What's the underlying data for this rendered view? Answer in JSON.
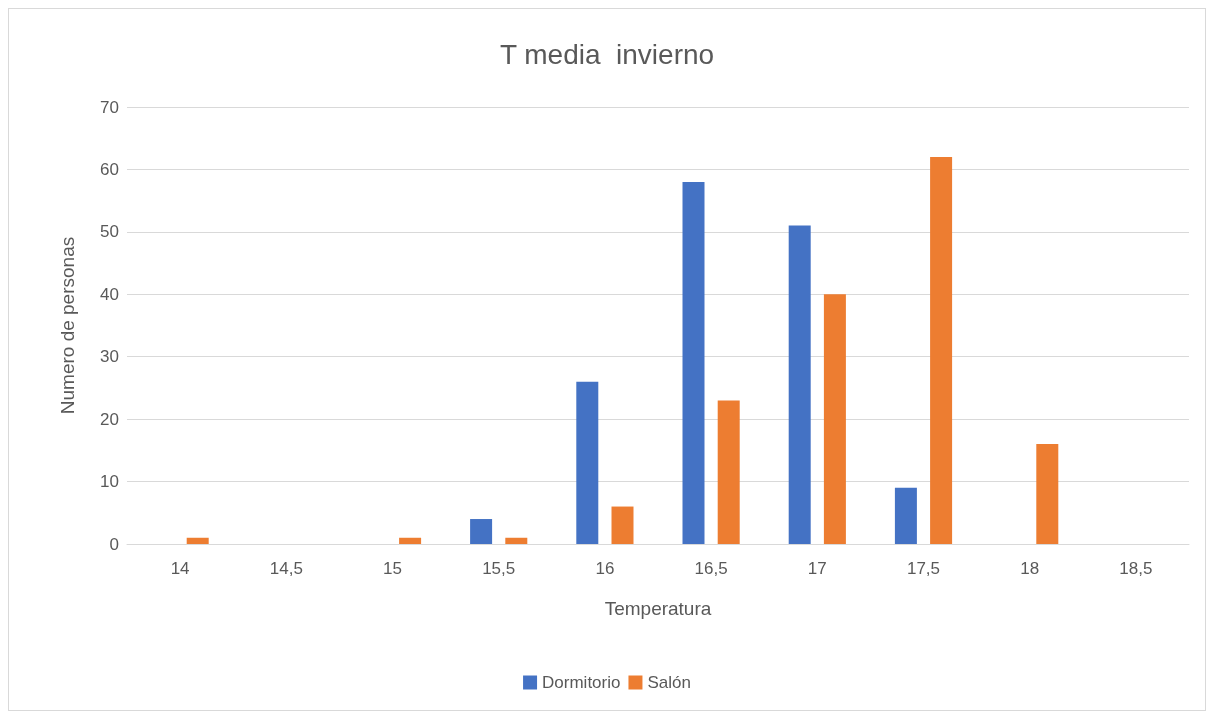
{
  "chart_data": {
    "type": "bar",
    "title": "T media  invierno",
    "xlabel": "Temperatura",
    "ylabel": "Numero de personas",
    "categories": [
      "14",
      "14,5",
      "15",
      "15,5",
      "16",
      "16,5",
      "17",
      "17,5",
      "18",
      "18,5"
    ],
    "series": [
      {
        "name": "Dormitorio",
        "color": "#4472c4",
        "values": [
          0,
          0,
          0,
          4,
          26,
          58,
          51,
          9,
          0,
          0
        ]
      },
      {
        "name": "Salón",
        "color": "#ed7d31",
        "values": [
          1,
          0,
          1,
          1,
          6,
          23,
          40,
          62,
          16,
          0
        ]
      }
    ],
    "ylim": [
      0,
      70
    ],
    "yticks": [
      0,
      10,
      20,
      30,
      40,
      50,
      60,
      70
    ],
    "grid": "y",
    "legend": "bottom"
  }
}
